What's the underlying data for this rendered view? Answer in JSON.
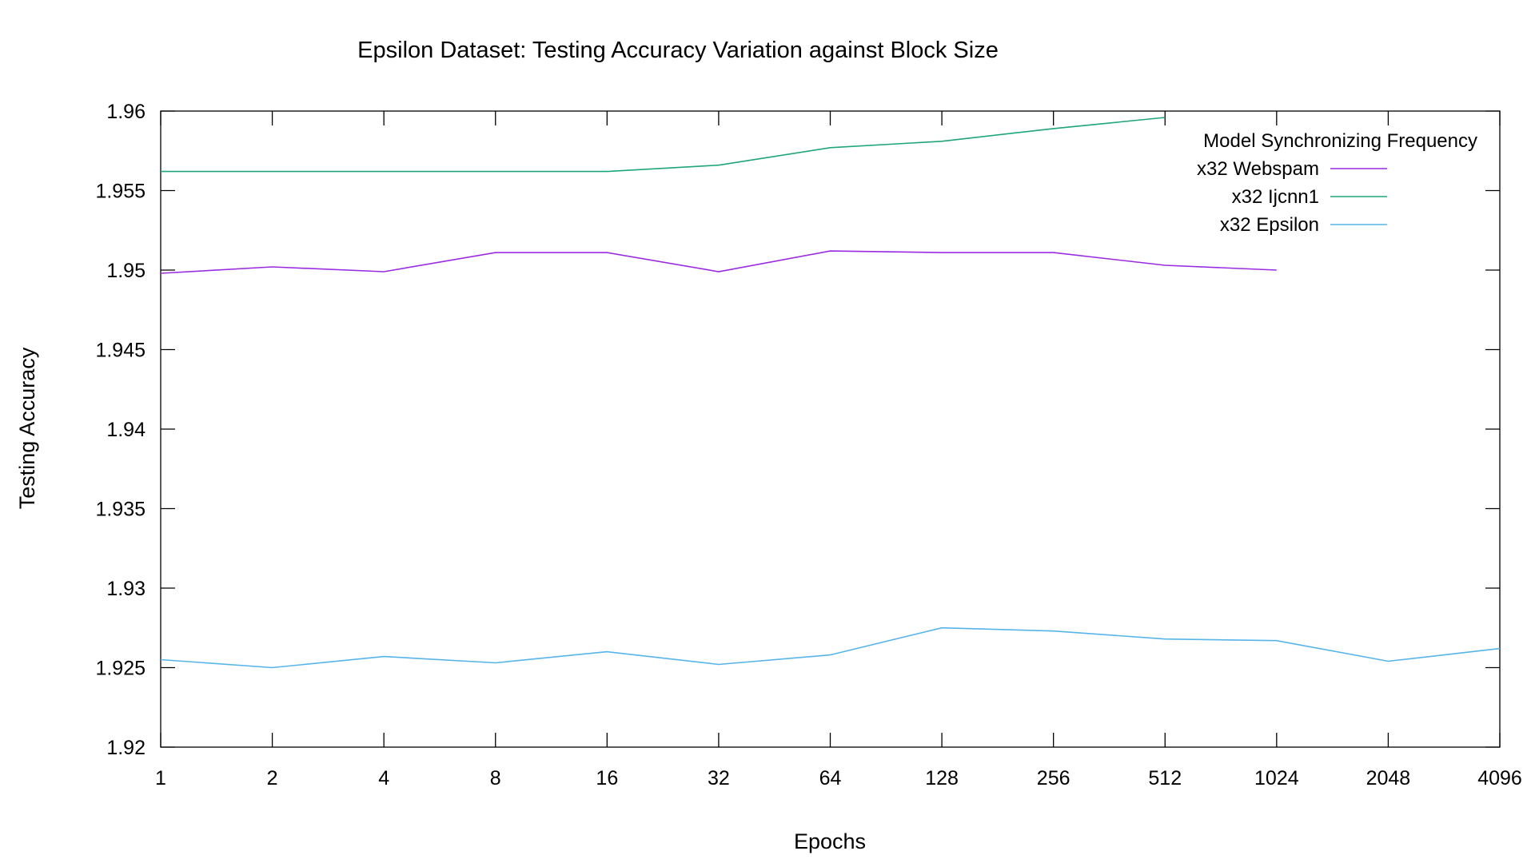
{
  "chart_data": {
    "type": "line",
    "title": "Epsilon Dataset: Testing  Accuracy Variation against Block Size",
    "xlabel": "Epochs",
    "ylabel": "Testing Accuracy",
    "x_scale": "log2",
    "categories": [
      "1",
      "2",
      "4",
      "8",
      "16",
      "32",
      "64",
      "128",
      "256",
      "512",
      "1024",
      "2048",
      "4096"
    ],
    "x": [
      1,
      2,
      4,
      8,
      16,
      32,
      64,
      128,
      256,
      512,
      1024,
      2048,
      4096
    ],
    "ylim": [
      1.92,
      1.96
    ],
    "yticks": [
      1.92,
      1.925,
      1.93,
      1.935,
      1.94,
      1.945,
      1.95,
      1.955,
      1.96
    ],
    "ytick_labels": [
      "1.92",
      "1.925",
      "1.93",
      "1.935",
      "1.94",
      "1.945",
      "1.95",
      "1.955",
      "1.96"
    ],
    "grid": false,
    "legend": {
      "title": "Model Synchronizing Frequency",
      "position": "top-right"
    },
    "series": [
      {
        "name": "x32 Webspam",
        "color": "#9a2be0",
        "x": [
          1,
          2,
          4,
          8,
          16,
          32,
          64,
          128,
          256,
          512,
          1024
        ],
        "values": [
          1.9498,
          1.9502,
          1.9499,
          1.9511,
          1.9511,
          1.9499,
          1.9512,
          1.9511,
          1.9511,
          1.9503,
          1.95
        ]
      },
      {
        "name": "x32 Ijcnn1",
        "color": "#1ea578",
        "x": [
          1,
          2,
          4,
          8,
          16,
          32,
          64,
          128,
          256,
          512
        ],
        "values": [
          1.9562,
          1.9562,
          1.9562,
          1.9562,
          1.9562,
          1.9566,
          1.9577,
          1.9581,
          1.9589,
          1.9596
        ]
      },
      {
        "name": "x32 Epsilon",
        "color": "#56b4e9",
        "x": [
          1,
          2,
          4,
          8,
          16,
          32,
          64,
          128,
          256,
          512,
          1024,
          2048,
          4096
        ],
        "values": [
          1.9255,
          1.925,
          1.9257,
          1.9253,
          1.926,
          1.9252,
          1.9258,
          1.9275,
          1.9273,
          1.9268,
          1.9267,
          1.9254,
          1.9262
        ]
      }
    ]
  }
}
